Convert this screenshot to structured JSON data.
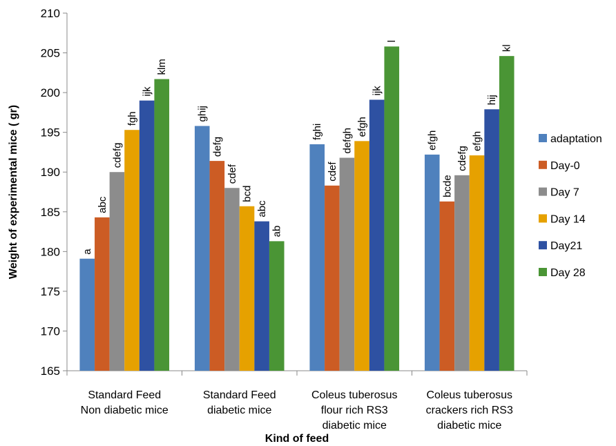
{
  "chart_data": {
    "type": "bar",
    "title": "",
    "xlabel": "Kind of feed",
    "ylabel": "Weight of experimental mice ( gr)",
    "ylim": [
      165,
      210
    ],
    "yticks": [
      165,
      170,
      175,
      180,
      185,
      190,
      195,
      200,
      205,
      210
    ],
    "grid": false,
    "legend_position": "right",
    "categories": [
      [
        "Standard Feed",
        "Non diabetic mice"
      ],
      [
        "Standard Feed",
        "diabetic mice"
      ],
      [
        "Coleus tuberosus",
        "flour rich RS3",
        "diabetic mice"
      ],
      [
        "Coleus tuberosus",
        "crackers rich RS3",
        "diabetic mice"
      ]
    ],
    "series": [
      {
        "name": "adaptation",
        "color": "#4f81bd",
        "values": [
          179.1,
          195.8,
          193.5,
          192.2
        ],
        "labels": [
          "a",
          "ghij",
          "fghi",
          "efgh"
        ]
      },
      {
        "name": "Day-0",
        "color": "#cc5c24",
        "values": [
          184.3,
          191.4,
          188.3,
          186.3
        ],
        "labels": [
          "abc",
          "defg",
          "cdef",
          "bcde"
        ]
      },
      {
        "name": "Day 7",
        "color": "#8c8c8c",
        "values": [
          190.0,
          188.0,
          191.8,
          189.6
        ],
        "labels": [
          "cdefg",
          "cdef",
          "defgh",
          "cdefg"
        ]
      },
      {
        "name": "Day 14",
        "color": "#e6a100",
        "values": [
          195.3,
          185.7,
          193.9,
          192.1
        ],
        "labels": [
          "fgh",
          "bcd",
          "efgh",
          "efgh"
        ]
      },
      {
        "name": "Day21",
        "color": "#2e51a2",
        "values": [
          199.0,
          183.8,
          199.1,
          197.9
        ],
        "labels": [
          "ijk",
          "abc",
          "ijk",
          "hij"
        ]
      },
      {
        "name": "Day 28",
        "color": "#4a9535",
        "values": [
          201.7,
          181.3,
          205.8,
          204.6
        ],
        "labels": [
          "klm",
          "ab",
          "l",
          "kl"
        ]
      }
    ]
  }
}
